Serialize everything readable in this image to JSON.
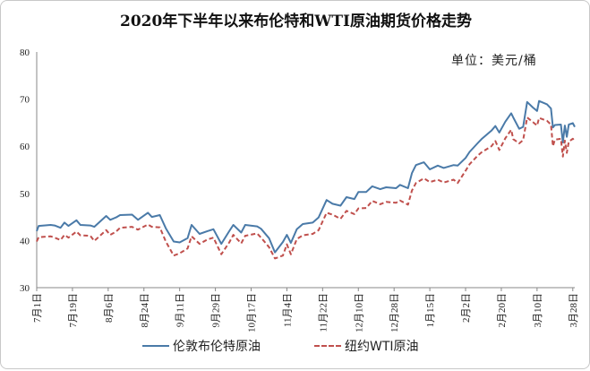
{
  "chart_data": {
    "type": "line",
    "title": "2020年下半年以来布伦特和WTI原油期货价格走势",
    "unit_label": "单位：美元/桶",
    "xlabel": "",
    "ylabel": "",
    "ylim": [
      30,
      80
    ],
    "yticks": [
      30,
      40,
      50,
      60,
      70,
      80
    ],
    "xlim": [
      "2020-07-01",
      "2021-03-29"
    ],
    "xticks": [
      {
        "date": "2020-07-01",
        "label": "7月1日"
      },
      {
        "date": "2020-07-19",
        "label": "7月19日"
      },
      {
        "date": "2020-08-06",
        "label": "8月6日"
      },
      {
        "date": "2020-08-24",
        "label": "8月24日"
      },
      {
        "date": "2020-09-11",
        "label": "9月11日"
      },
      {
        "date": "2020-09-29",
        "label": "9月29日"
      },
      {
        "date": "2020-10-17",
        "label": "10月17日"
      },
      {
        "date": "2020-11-04",
        "label": "11月4日"
      },
      {
        "date": "2020-11-22",
        "label": "11月22日"
      },
      {
        "date": "2020-12-10",
        "label": "12月10日"
      },
      {
        "date": "2020-12-28",
        "label": "12月28日"
      },
      {
        "date": "2021-01-15",
        "label": "1月15日"
      },
      {
        "date": "2021-02-02",
        "label": "2月2日"
      },
      {
        "date": "2021-02-20",
        "label": "2月20日"
      },
      {
        "date": "2021-03-10",
        "label": "3月10日"
      },
      {
        "date": "2021-03-28",
        "label": "3月28日"
      }
    ],
    "grid": false,
    "legend_position": "bottom",
    "series": [
      {
        "name": "伦敦布伦特原油",
        "color": "#4a7aa8",
        "style": "solid",
        "points": [
          [
            "2020-07-01",
            42.0
          ],
          [
            "2020-07-02",
            43.1
          ],
          [
            "2020-07-08",
            43.3
          ],
          [
            "2020-07-10",
            43.2
          ],
          [
            "2020-07-13",
            42.7
          ],
          [
            "2020-07-15",
            43.8
          ],
          [
            "2020-07-17",
            43.1
          ],
          [
            "2020-07-21",
            44.3
          ],
          [
            "2020-07-23",
            43.3
          ],
          [
            "2020-07-28",
            43.2
          ],
          [
            "2020-07-30",
            42.9
          ],
          [
            "2020-08-05",
            45.2
          ],
          [
            "2020-08-07",
            44.4
          ],
          [
            "2020-08-10",
            44.9
          ],
          [
            "2020-08-12",
            45.4
          ],
          [
            "2020-08-18",
            45.5
          ],
          [
            "2020-08-21",
            44.4
          ],
          [
            "2020-08-26",
            45.9
          ],
          [
            "2020-08-28",
            45.0
          ],
          [
            "2020-09-01",
            45.4
          ],
          [
            "2020-09-04",
            42.6
          ],
          [
            "2020-09-08",
            39.8
          ],
          [
            "2020-09-11",
            39.6
          ],
          [
            "2020-09-15",
            40.5
          ],
          [
            "2020-09-17",
            43.3
          ],
          [
            "2020-09-21",
            41.4
          ],
          [
            "2020-09-25",
            42.0
          ],
          [
            "2020-09-28",
            42.4
          ],
          [
            "2020-10-02",
            39.3
          ],
          [
            "2020-10-06",
            42.0
          ],
          [
            "2020-10-08",
            43.3
          ],
          [
            "2020-10-12",
            41.7
          ],
          [
            "2020-10-14",
            43.3
          ],
          [
            "2020-10-20",
            43.0
          ],
          [
            "2020-10-22",
            42.5
          ],
          [
            "2020-10-26",
            40.5
          ],
          [
            "2020-10-29",
            37.5
          ],
          [
            "2020-11-02",
            39.7
          ],
          [
            "2020-11-04",
            41.2
          ],
          [
            "2020-11-06",
            39.5
          ],
          [
            "2020-11-09",
            42.4
          ],
          [
            "2020-11-12",
            43.5
          ],
          [
            "2020-11-17",
            43.8
          ],
          [
            "2020-11-20",
            44.9
          ],
          [
            "2020-11-24",
            48.6
          ],
          [
            "2020-11-27",
            47.8
          ],
          [
            "2020-12-01",
            47.4
          ],
          [
            "2020-12-04",
            49.2
          ],
          [
            "2020-12-08",
            48.8
          ],
          [
            "2020-12-10",
            50.3
          ],
          [
            "2020-12-14",
            50.3
          ],
          [
            "2020-12-17",
            51.5
          ],
          [
            "2020-12-21",
            50.9
          ],
          [
            "2020-12-24",
            51.3
          ],
          [
            "2020-12-29",
            51.1
          ],
          [
            "2020-12-31",
            51.8
          ],
          [
            "2021-01-04",
            51.1
          ],
          [
            "2021-01-06",
            54.3
          ],
          [
            "2021-01-08",
            56.0
          ],
          [
            "2021-01-12",
            56.6
          ],
          [
            "2021-01-15",
            55.1
          ],
          [
            "2021-01-19",
            55.9
          ],
          [
            "2021-01-22",
            55.4
          ],
          [
            "2021-01-27",
            56.0
          ],
          [
            "2021-01-29",
            55.9
          ],
          [
            "2021-02-02",
            57.5
          ],
          [
            "2021-02-04",
            58.8
          ],
          [
            "2021-02-08",
            60.6
          ],
          [
            "2021-02-10",
            61.5
          ],
          [
            "2021-02-15",
            63.3
          ],
          [
            "2021-02-17",
            64.3
          ],
          [
            "2021-02-19",
            62.9
          ],
          [
            "2021-02-22",
            65.2
          ],
          [
            "2021-02-25",
            67.0
          ],
          [
            "2021-02-26",
            66.1
          ],
          [
            "2021-03-01",
            63.7
          ],
          [
            "2021-03-03",
            64.1
          ],
          [
            "2021-03-05",
            69.4
          ],
          [
            "2021-03-08",
            68.2
          ],
          [
            "2021-03-10",
            67.5
          ],
          [
            "2021-03-11",
            69.6
          ],
          [
            "2021-03-15",
            68.9
          ],
          [
            "2021-03-17",
            68.0
          ],
          [
            "2021-03-18",
            64.0
          ],
          [
            "2021-03-19",
            64.5
          ],
          [
            "2021-03-22",
            64.6
          ],
          [
            "2021-03-23",
            60.8
          ],
          [
            "2021-03-24",
            64.4
          ],
          [
            "2021-03-25",
            62.0
          ],
          [
            "2021-03-26",
            64.6
          ],
          [
            "2021-03-28",
            64.9
          ],
          [
            "2021-03-29",
            64.1
          ]
        ]
      },
      {
        "name": "纽约WTI原油",
        "color": "#c0504d",
        "style": "dashed",
        "points": [
          [
            "2020-07-01",
            39.8
          ],
          [
            "2020-07-02",
            40.7
          ],
          [
            "2020-07-08",
            40.9
          ],
          [
            "2020-07-10",
            40.6
          ],
          [
            "2020-07-13",
            40.1
          ],
          [
            "2020-07-15",
            41.2
          ],
          [
            "2020-07-17",
            40.6
          ],
          [
            "2020-07-21",
            41.9
          ],
          [
            "2020-07-23",
            41.1
          ],
          [
            "2020-07-28",
            41.0
          ],
          [
            "2020-07-30",
            39.9
          ],
          [
            "2020-08-05",
            42.2
          ],
          [
            "2020-08-07",
            41.2
          ],
          [
            "2020-08-10",
            41.9
          ],
          [
            "2020-08-12",
            42.7
          ],
          [
            "2020-08-18",
            42.9
          ],
          [
            "2020-08-21",
            42.3
          ],
          [
            "2020-08-26",
            43.4
          ],
          [
            "2020-08-28",
            42.9
          ],
          [
            "2020-09-01",
            42.8
          ],
          [
            "2020-09-04",
            39.8
          ],
          [
            "2020-09-08",
            36.8
          ],
          [
            "2020-09-11",
            37.3
          ],
          [
            "2020-09-15",
            38.3
          ],
          [
            "2020-09-17",
            40.9
          ],
          [
            "2020-09-21",
            39.3
          ],
          [
            "2020-09-25",
            40.2
          ],
          [
            "2020-09-28",
            40.6
          ],
          [
            "2020-10-02",
            37.1
          ],
          [
            "2020-10-06",
            39.6
          ],
          [
            "2020-10-08",
            41.2
          ],
          [
            "2020-10-12",
            39.4
          ],
          [
            "2020-10-14",
            41.0
          ],
          [
            "2020-10-20",
            41.5
          ],
          [
            "2020-10-22",
            40.6
          ],
          [
            "2020-10-26",
            38.6
          ],
          [
            "2020-10-29",
            36.2
          ],
          [
            "2020-11-02",
            36.8
          ],
          [
            "2020-11-04",
            39.2
          ],
          [
            "2020-11-06",
            37.1
          ],
          [
            "2020-11-09",
            40.3
          ],
          [
            "2020-11-12",
            41.1
          ],
          [
            "2020-11-17",
            41.4
          ],
          [
            "2020-11-20",
            42.2
          ],
          [
            "2020-11-24",
            45.9
          ],
          [
            "2020-11-27",
            45.5
          ],
          [
            "2020-12-01",
            44.6
          ],
          [
            "2020-12-04",
            46.3
          ],
          [
            "2020-12-08",
            45.6
          ],
          [
            "2020-12-10",
            46.8
          ],
          [
            "2020-12-14",
            46.9
          ],
          [
            "2020-12-17",
            48.4
          ],
          [
            "2020-12-21",
            47.7
          ],
          [
            "2020-12-24",
            48.2
          ],
          [
            "2020-12-29",
            48.0
          ],
          [
            "2020-12-31",
            48.5
          ],
          [
            "2021-01-04",
            47.6
          ],
          [
            "2021-01-06",
            50.6
          ],
          [
            "2021-01-08",
            52.2
          ],
          [
            "2021-01-12",
            53.2
          ],
          [
            "2021-01-15",
            52.4
          ],
          [
            "2021-01-19",
            52.9
          ],
          [
            "2021-01-22",
            52.3
          ],
          [
            "2021-01-27",
            52.9
          ],
          [
            "2021-01-29",
            52.2
          ],
          [
            "2021-02-02",
            54.8
          ],
          [
            "2021-02-04",
            56.2
          ],
          [
            "2021-02-08",
            57.97
          ],
          [
            "2021-02-10",
            58.7
          ],
          [
            "2021-02-15",
            60.0
          ],
          [
            "2021-02-17",
            61.1
          ],
          [
            "2021-02-19",
            59.2
          ],
          [
            "2021-02-22",
            61.7
          ],
          [
            "2021-02-25",
            63.5
          ],
          [
            "2021-02-26",
            61.5
          ],
          [
            "2021-03-01",
            60.6
          ],
          [
            "2021-03-03",
            61.3
          ],
          [
            "2021-03-05",
            66.1
          ],
          [
            "2021-03-08",
            65.1
          ],
          [
            "2021-03-10",
            64.4
          ],
          [
            "2021-03-11",
            66.0
          ],
          [
            "2021-03-15",
            65.4
          ],
          [
            "2021-03-17",
            64.6
          ],
          [
            "2021-03-18",
            60.0
          ],
          [
            "2021-03-19",
            61.4
          ],
          [
            "2021-03-22",
            61.6
          ],
          [
            "2021-03-23",
            57.8
          ],
          [
            "2021-03-24",
            61.2
          ],
          [
            "2021-03-25",
            58.6
          ],
          [
            "2021-03-26",
            60.97
          ],
          [
            "2021-03-28",
            61.6
          ],
          [
            "2021-03-29",
            61.1
          ]
        ]
      }
    ]
  }
}
